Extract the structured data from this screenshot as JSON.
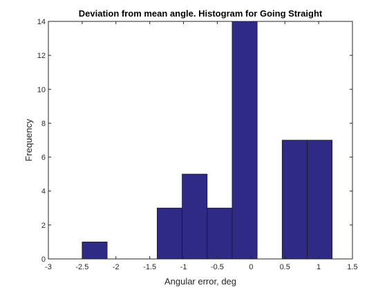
{
  "chart_data": {
    "type": "bar",
    "title": "Deviation from mean angle. Histogram for Going Straight",
    "xlabel": "Angular error, deg",
    "ylabel": "Frequency",
    "xlim": [
      -3,
      1.5
    ],
    "ylim": [
      0,
      14
    ],
    "xticks": [
      -3,
      -2.5,
      -2,
      -1.5,
      -1,
      -0.5,
      0,
      0.5,
      1,
      1.5
    ],
    "yticks": [
      0,
      2,
      4,
      6,
      8,
      10,
      12,
      14
    ],
    "grid": false,
    "bins": [
      {
        "start": -2.5,
        "end": -2.13,
        "count": 1
      },
      {
        "start": -2.13,
        "end": -1.76,
        "count": 0
      },
      {
        "start": -1.76,
        "end": -1.39,
        "count": 0
      },
      {
        "start": -1.39,
        "end": -1.02,
        "count": 3
      },
      {
        "start": -1.02,
        "end": -0.65,
        "count": 5
      },
      {
        "start": -0.65,
        "end": -0.28,
        "count": 3
      },
      {
        "start": -0.28,
        "end": 0.09,
        "count": 14
      },
      {
        "start": 0.09,
        "end": 0.46,
        "count": 0
      },
      {
        "start": 0.46,
        "end": 0.83,
        "count": 7
      },
      {
        "start": 0.83,
        "end": 1.2,
        "count": 7
      }
    ],
    "colors": {
      "bar_fill": "#2e2a86",
      "bar_edge": "#1a1a1a",
      "axis": "#262626"
    }
  }
}
